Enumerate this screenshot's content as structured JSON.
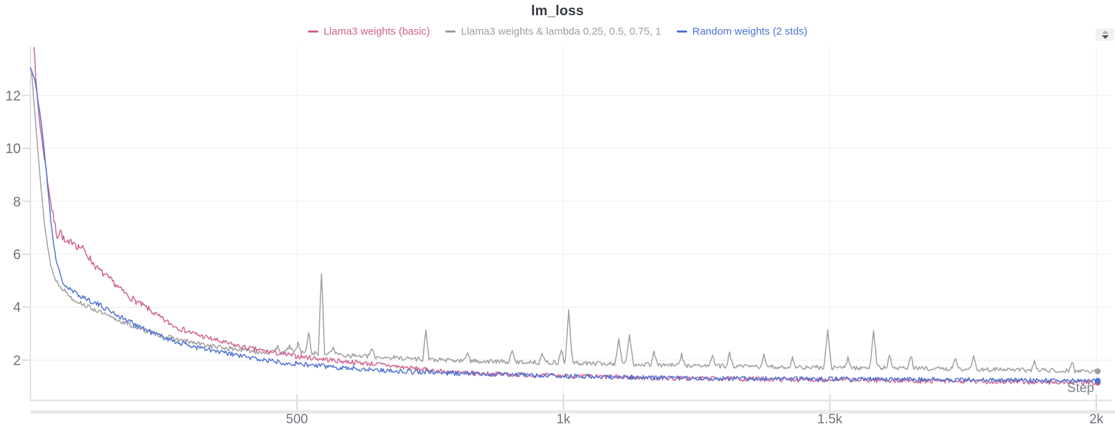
{
  "header": {
    "title": "lm_loss"
  },
  "chart_data": {
    "type": "line",
    "title": "lm_loss",
    "xlabel": "Step",
    "ylabel": "",
    "x_range": [
      0,
      2000
    ],
    "y_range": [
      0.48,
      13.82
    ],
    "x_ticks": [
      {
        "value": 500,
        "label": "500"
      },
      {
        "value": 1000,
        "label": "1k"
      },
      {
        "value": 1500,
        "label": "1.5k"
      },
      {
        "value": 2000,
        "label": "2k"
      }
    ],
    "y_ticks": [
      2,
      4,
      6,
      8,
      10,
      12
    ],
    "grid": true,
    "legend_position": "top-center",
    "series": [
      {
        "name": "Llama3 weights (basic)",
        "color": "#cf6290",
        "seed": 7,
        "noise": [
          [
            0,
            0.05
          ],
          [
            40,
            0.14
          ],
          [
            70,
            0.17
          ],
          [
            130,
            0.13
          ],
          [
            300,
            0.1
          ],
          [
            700,
            0.09
          ],
          [
            2000,
            0.09
          ]
        ],
        "keypoints": [
          [
            4,
            14.8
          ],
          [
            10,
            12.6
          ],
          [
            16,
            11.2
          ],
          [
            22,
            10.2
          ],
          [
            28,
            9.4
          ],
          [
            34,
            8.5
          ],
          [
            40,
            7.7
          ],
          [
            46,
            7.1
          ],
          [
            50,
            6.7
          ],
          [
            56,
            6.9
          ],
          [
            64,
            6.45
          ],
          [
            72,
            6.35
          ],
          [
            80,
            6.55
          ],
          [
            88,
            6.3
          ],
          [
            96,
            6.25
          ],
          [
            106,
            6.0
          ],
          [
            116,
            5.7
          ],
          [
            126,
            5.45
          ],
          [
            140,
            5.2
          ],
          [
            155,
            4.95
          ],
          [
            170,
            4.65
          ],
          [
            185,
            4.4
          ],
          [
            200,
            4.2
          ],
          [
            220,
            3.95
          ],
          [
            240,
            3.65
          ],
          [
            260,
            3.4
          ],
          [
            280,
            3.2
          ],
          [
            300,
            3.05
          ],
          [
            320,
            2.92
          ],
          [
            340,
            2.8
          ],
          [
            360,
            2.68
          ],
          [
            380,
            2.58
          ],
          [
            400,
            2.48
          ],
          [
            430,
            2.38
          ],
          [
            460,
            2.27
          ],
          [
            500,
            2.15
          ],
          [
            540,
            2.06
          ],
          [
            580,
            1.97
          ],
          [
            620,
            1.9
          ],
          [
            660,
            1.83
          ],
          [
            700,
            1.73
          ],
          [
            750,
            1.62
          ],
          [
            800,
            1.53
          ],
          [
            850,
            1.49
          ],
          [
            900,
            1.46
          ],
          [
            950,
            1.43
          ],
          [
            1000,
            1.4
          ],
          [
            1100,
            1.36
          ],
          [
            1200,
            1.32
          ],
          [
            1300,
            1.3
          ],
          [
            1400,
            1.28
          ],
          [
            1500,
            1.26
          ],
          [
            1600,
            1.24
          ],
          [
            1700,
            1.21
          ],
          [
            1800,
            1.19
          ],
          [
            1900,
            1.17
          ],
          [
            2000,
            1.15
          ]
        ],
        "spikes": []
      },
      {
        "name": "Llama3 weights & lambda 0.25, 0.5, 0.75, 1",
        "color": "#9e9e9e",
        "seed": 13,
        "noise": [
          [
            0,
            0.04
          ],
          [
            60,
            0.08
          ],
          [
            300,
            0.09
          ],
          [
            2000,
            0.08
          ]
        ],
        "keypoints": [
          [
            2,
            12.9
          ],
          [
            8,
            11.4
          ],
          [
            14,
            9.9
          ],
          [
            20,
            8.4
          ],
          [
            26,
            7.2
          ],
          [
            32,
            6.3
          ],
          [
            38,
            5.6
          ],
          [
            44,
            5.15
          ],
          [
            52,
            4.9
          ],
          [
            60,
            4.7
          ],
          [
            70,
            4.5
          ],
          [
            80,
            4.3
          ],
          [
            95,
            4.15
          ],
          [
            110,
            4.0
          ],
          [
            130,
            3.82
          ],
          [
            150,
            3.62
          ],
          [
            175,
            3.42
          ],
          [
            200,
            3.22
          ],
          [
            230,
            3.02
          ],
          [
            260,
            2.86
          ],
          [
            290,
            2.72
          ],
          [
            320,
            2.6
          ],
          [
            350,
            2.5
          ],
          [
            380,
            2.42
          ],
          [
            410,
            2.36
          ],
          [
            440,
            2.3
          ],
          [
            470,
            2.28
          ],
          [
            500,
            2.3
          ],
          [
            530,
            2.26
          ],
          [
            560,
            2.24
          ],
          [
            600,
            2.18
          ],
          [
            650,
            2.12
          ],
          [
            700,
            2.08
          ],
          [
            750,
            2.02
          ],
          [
            800,
            1.98
          ],
          [
            850,
            1.96
          ],
          [
            900,
            1.94
          ],
          [
            950,
            1.92
          ],
          [
            1000,
            1.9
          ],
          [
            1050,
            1.88
          ],
          [
            1100,
            1.86
          ],
          [
            1150,
            1.85
          ],
          [
            1200,
            1.81
          ],
          [
            1250,
            1.79
          ],
          [
            1300,
            1.77
          ],
          [
            1350,
            1.76
          ],
          [
            1400,
            1.74
          ],
          [
            1450,
            1.73
          ],
          [
            1500,
            1.72
          ],
          [
            1550,
            1.71
          ],
          [
            1600,
            1.72
          ],
          [
            1650,
            1.7
          ],
          [
            1700,
            1.68
          ],
          [
            1750,
            1.66
          ],
          [
            1800,
            1.65
          ],
          [
            1850,
            1.63
          ],
          [
            1900,
            1.62
          ],
          [
            1950,
            1.6
          ],
          [
            2000,
            1.58
          ]
        ],
        "spikes": [
          [
            464,
            0.3,
            6
          ],
          [
            486,
            0.3,
            6
          ],
          [
            502,
            0.35,
            6
          ],
          [
            522,
            0.75,
            6
          ],
          [
            546,
            3.05,
            6
          ],
          [
            568,
            0.3,
            6
          ],
          [
            640,
            0.3,
            6
          ],
          [
            742,
            1.1,
            6
          ],
          [
            820,
            0.35,
            6
          ],
          [
            904,
            0.4,
            6
          ],
          [
            960,
            0.35,
            6
          ],
          [
            996,
            0.5,
            6
          ],
          [
            1010,
            1.95,
            7
          ],
          [
            1104,
            0.95,
            7
          ],
          [
            1124,
            1.1,
            7
          ],
          [
            1170,
            0.55,
            6
          ],
          [
            1222,
            0.4,
            6
          ],
          [
            1280,
            0.45,
            6
          ],
          [
            1312,
            0.5,
            6
          ],
          [
            1376,
            0.45,
            6
          ],
          [
            1430,
            0.35,
            6
          ],
          [
            1496,
            1.35,
            7
          ],
          [
            1534,
            0.4,
            6
          ],
          [
            1582,
            1.4,
            7
          ],
          [
            1612,
            0.45,
            6
          ],
          [
            1652,
            0.5,
            6
          ],
          [
            1736,
            0.45,
            6
          ],
          [
            1770,
            0.5,
            6
          ],
          [
            1884,
            0.3,
            6
          ],
          [
            1954,
            0.35,
            6
          ]
        ]
      },
      {
        "name": "Random weights (2 stds)",
        "color": "#4d72d2",
        "seed": 21,
        "noise": [
          [
            0,
            0.03
          ],
          [
            60,
            0.1
          ],
          [
            300,
            0.1
          ],
          [
            2000,
            0.08
          ]
        ],
        "keypoints": [
          [
            0,
            13.05
          ],
          [
            8,
            12.6
          ],
          [
            14,
            11.8
          ],
          [
            20,
            11.0
          ],
          [
            26,
            9.9
          ],
          [
            32,
            8.6
          ],
          [
            38,
            7.3
          ],
          [
            44,
            6.3
          ],
          [
            50,
            5.6
          ],
          [
            56,
            5.2
          ],
          [
            62,
            4.9
          ],
          [
            70,
            4.72
          ],
          [
            80,
            4.58
          ],
          [
            90,
            4.47
          ],
          [
            100,
            4.37
          ],
          [
            115,
            4.22
          ],
          [
            130,
            4.07
          ],
          [
            150,
            3.86
          ],
          [
            170,
            3.62
          ],
          [
            190,
            3.42
          ],
          [
            210,
            3.22
          ],
          [
            230,
            3.02
          ],
          [
            250,
            2.87
          ],
          [
            270,
            2.72
          ],
          [
            290,
            2.6
          ],
          [
            310,
            2.5
          ],
          [
            330,
            2.4
          ],
          [
            350,
            2.32
          ],
          [
            370,
            2.25
          ],
          [
            390,
            2.18
          ],
          [
            410,
            2.1
          ],
          [
            440,
            2.0
          ],
          [
            470,
            1.93
          ],
          [
            500,
            1.86
          ],
          [
            540,
            1.79
          ],
          [
            580,
            1.73
          ],
          [
            620,
            1.67
          ],
          [
            660,
            1.62
          ],
          [
            700,
            1.58
          ],
          [
            750,
            1.54
          ],
          [
            800,
            1.5
          ],
          [
            850,
            1.48
          ],
          [
            900,
            1.46
          ],
          [
            950,
            1.43
          ],
          [
            1000,
            1.4
          ],
          [
            1100,
            1.36
          ],
          [
            1200,
            1.33
          ],
          [
            1300,
            1.31
          ],
          [
            1400,
            1.3
          ],
          [
            1500,
            1.29
          ],
          [
            1600,
            1.28
          ],
          [
            1700,
            1.26
          ],
          [
            1800,
            1.25
          ],
          [
            1900,
            1.23
          ],
          [
            2000,
            1.22
          ]
        ],
        "spikes": []
      }
    ]
  }
}
